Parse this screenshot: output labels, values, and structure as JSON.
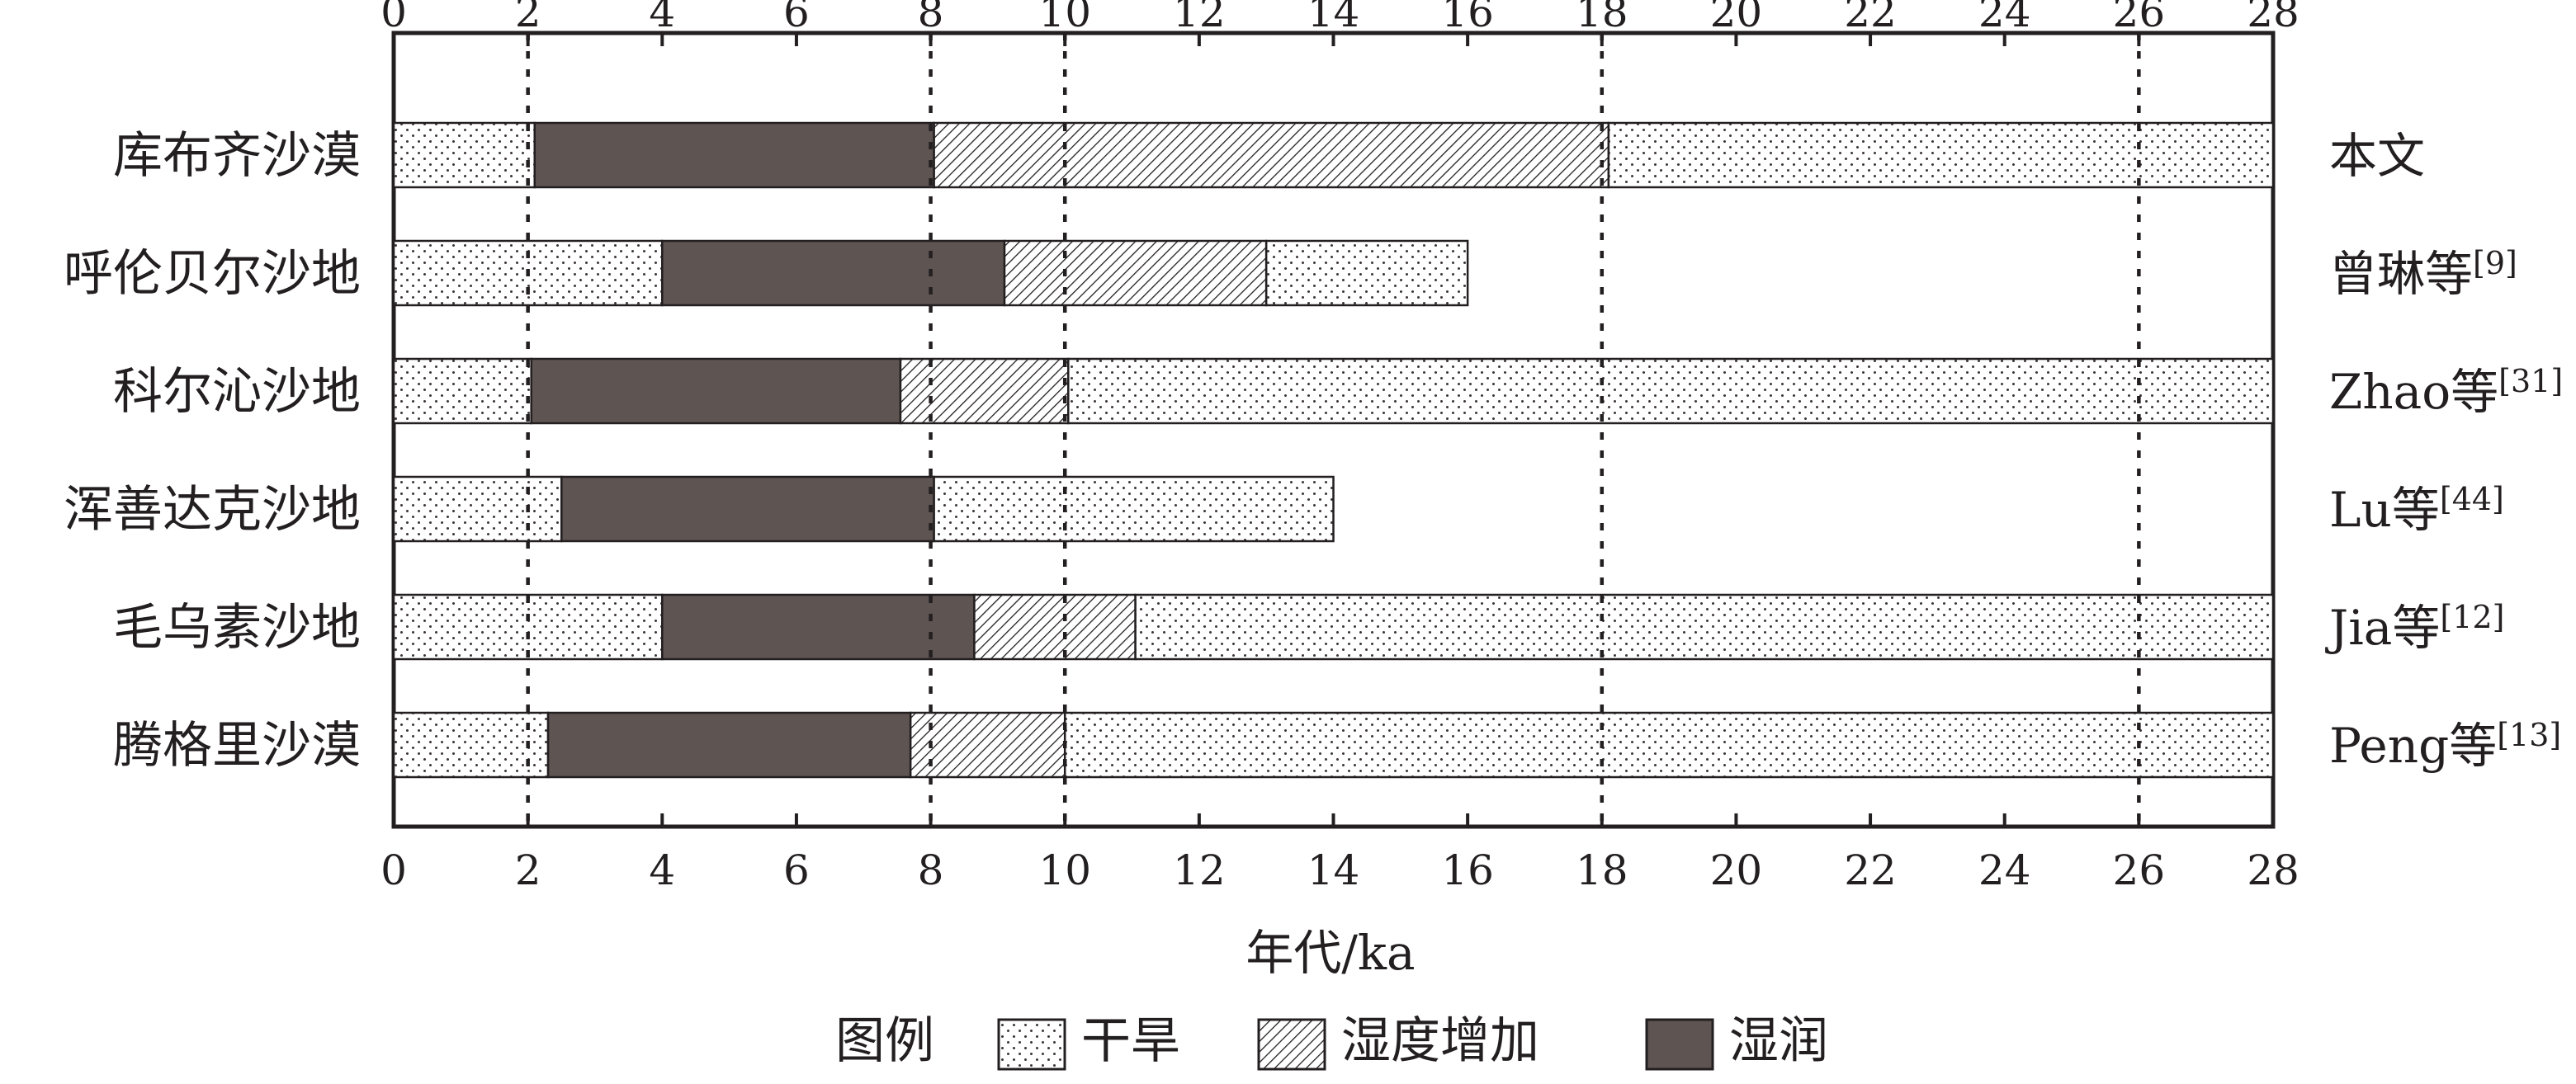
{
  "chart_data": {
    "type": "bar",
    "subtype": "horizontal-stacked-timeline",
    "xlabel": "年代/ka",
    "xlim": [
      0,
      28
    ],
    "xticks": [
      0,
      2,
      4,
      6,
      8,
      10,
      12,
      14,
      16,
      18,
      20,
      22,
      24,
      26,
      28
    ],
    "xaxis_position": [
      "top",
      "bottom"
    ],
    "reference_lines": [
      2,
      8,
      10,
      18,
      26
    ],
    "grid": false,
    "legend": {
      "title": "图例",
      "position": "bottom",
      "entries": [
        {
          "key": "dry",
          "label": "干旱",
          "pattern": "dots"
        },
        {
          "key": "increasing",
          "label": "湿度增加",
          "pattern": "hatch"
        },
        {
          "key": "humid",
          "label": "湿润",
          "pattern": "solid",
          "color": "#5e5452"
        }
      ]
    },
    "rows": [
      {
        "site": "库布齐沙漠",
        "source": "本文",
        "source_sup": "",
        "segments": [
          {
            "start": 0,
            "end": 2.1,
            "type": "dry"
          },
          {
            "start": 2.1,
            "end": 8.05,
            "type": "humid"
          },
          {
            "start": 8.05,
            "end": 18.1,
            "type": "increasing"
          },
          {
            "start": 18.1,
            "end": 28,
            "type": "dry"
          }
        ]
      },
      {
        "site": "呼伦贝尔沙地",
        "source": "曾琳等",
        "source_sup": "[9]",
        "segments": [
          {
            "start": 0,
            "end": 4.0,
            "type": "dry"
          },
          {
            "start": 4.0,
            "end": 9.1,
            "type": "humid"
          },
          {
            "start": 9.1,
            "end": 13.0,
            "type": "increasing"
          },
          {
            "start": 13.0,
            "end": 16.0,
            "type": "dry"
          }
        ]
      },
      {
        "site": "科尔沁沙地",
        "source": "Zhao等",
        "source_sup": "[31]",
        "segments": [
          {
            "start": 0,
            "end": 2.05,
            "type": "dry"
          },
          {
            "start": 2.05,
            "end": 7.55,
            "type": "humid"
          },
          {
            "start": 7.55,
            "end": 10.05,
            "type": "increasing"
          },
          {
            "start": 10.05,
            "end": 28,
            "type": "dry"
          }
        ]
      },
      {
        "site": "浑善达克沙地",
        "source": "Lu等",
        "source_sup": "[44]",
        "segments": [
          {
            "start": 0,
            "end": 2.5,
            "type": "dry"
          },
          {
            "start": 2.5,
            "end": 8.05,
            "type": "humid"
          },
          {
            "start": 8.05,
            "end": 14.0,
            "type": "dry"
          }
        ]
      },
      {
        "site": "毛乌素沙地",
        "source": "Jia等",
        "source_sup": "[12]",
        "segments": [
          {
            "start": 0,
            "end": 4.0,
            "type": "dry"
          },
          {
            "start": 4.0,
            "end": 8.65,
            "type": "humid"
          },
          {
            "start": 8.65,
            "end": 11.05,
            "type": "increasing"
          },
          {
            "start": 11.05,
            "end": 28,
            "type": "dry"
          }
        ]
      },
      {
        "site": "腾格里沙漠",
        "source": "Peng等",
        "source_sup": "[13]",
        "segments": [
          {
            "start": 0,
            "end": 2.3,
            "type": "dry"
          },
          {
            "start": 2.3,
            "end": 7.7,
            "type": "humid"
          },
          {
            "start": 7.7,
            "end": 10.0,
            "type": "increasing"
          },
          {
            "start": 10.0,
            "end": 28,
            "type": "dry"
          }
        ]
      }
    ]
  }
}
